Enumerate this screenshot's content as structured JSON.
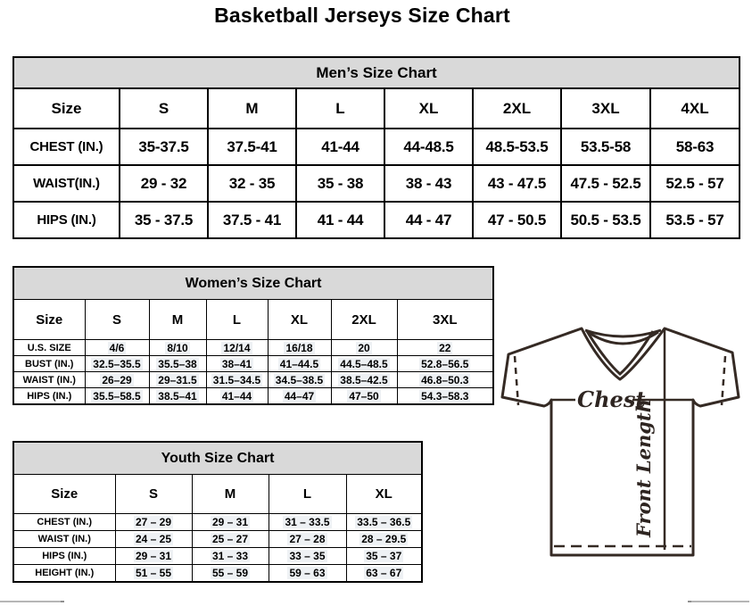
{
  "title": "Basketball Jerseys Size Chart",
  "colors": {
    "band_background": "#d9d9d9",
    "table_border": "#000000",
    "diagram_stroke": "#352a24",
    "value_highlight": "#eef1f4",
    "scrollbar_gray": "#b6b6b6"
  },
  "tables": {
    "men": {
      "title": "Men’s Size Chart",
      "size_label": "Size",
      "columns": [
        "S",
        "M",
        "L",
        "XL",
        "2XL",
        "3XL",
        "4XL"
      ],
      "highlight": false,
      "rows": [
        {
          "label": "CHEST (IN.)",
          "values": [
            "35-37.5",
            "37.5-41",
            "41-44",
            "44-48.5",
            "48.5-53.5",
            "53.5-58",
            "58-63"
          ]
        },
        {
          "label": "WAIST(IN.)",
          "values": [
            "29 - 32",
            "32 - 35",
            "35 - 38",
            "38 - 43",
            "43 - 47.5",
            "47.5 - 52.5",
            "52.5 - 57"
          ]
        },
        {
          "label": "HIPS (IN.)",
          "values": [
            "35 - 37.5",
            "37.5 - 41",
            "41 - 44",
            "44 - 47",
            "47 - 50.5",
            "50.5 - 53.5",
            "53.5 - 57"
          ]
        }
      ]
    },
    "women": {
      "title": "Women’s Size Chart",
      "size_label": "Size",
      "columns": [
        "S",
        "M",
        "L",
        "XL",
        "2XL",
        "3XL"
      ],
      "highlight": true,
      "rows": [
        {
          "label": "U.S. SIZE",
          "values": [
            "4/6",
            "8/10",
            "12/14",
            "16/18",
            "20",
            "22"
          ]
        },
        {
          "label": "BUST (IN.)",
          "values": [
            "32.5–35.5",
            "35.5–38",
            "38–41",
            "41–44.5",
            "44.5–48.5",
            "52.8–56.5"
          ]
        },
        {
          "label": "WAIST (IN.)",
          "values": [
            "26–29",
            "29–31.5",
            "31.5–34.5",
            "34.5–38.5",
            "38.5–42.5",
            "46.8–50.3"
          ]
        },
        {
          "label": "HIPS (IN.)",
          "values": [
            "35.5–58.5",
            "38.5–41",
            "41–44",
            "44–47",
            "47–50",
            "54.3–58.3"
          ]
        }
      ]
    },
    "youth": {
      "title": "Youth Size Chart",
      "size_label": "Size",
      "columns": [
        "S",
        "M",
        "L",
        "XL"
      ],
      "highlight": true,
      "rows": [
        {
          "label": "CHEST (IN.)",
          "values": [
            "27 – 29",
            "29 – 31",
            "31 – 33.5",
            "33.5 – 36.5"
          ]
        },
        {
          "label": "WAIST (IN.)",
          "values": [
            "24 – 25",
            "25 – 27",
            "27 – 28",
            "28 – 29.5"
          ]
        },
        {
          "label": "HIPS (IN.)",
          "values": [
            "29 – 31",
            "31 – 33",
            "33 – 35",
            "35 – 37"
          ]
        },
        {
          "label": "HEIGHT (IN.)",
          "values": [
            "51 – 55",
            "55 – 59",
            "59 – 63",
            "63 – 67"
          ]
        }
      ]
    }
  },
  "diagram": {
    "chest_label": "Chest",
    "front_length_label": "Front Length"
  }
}
